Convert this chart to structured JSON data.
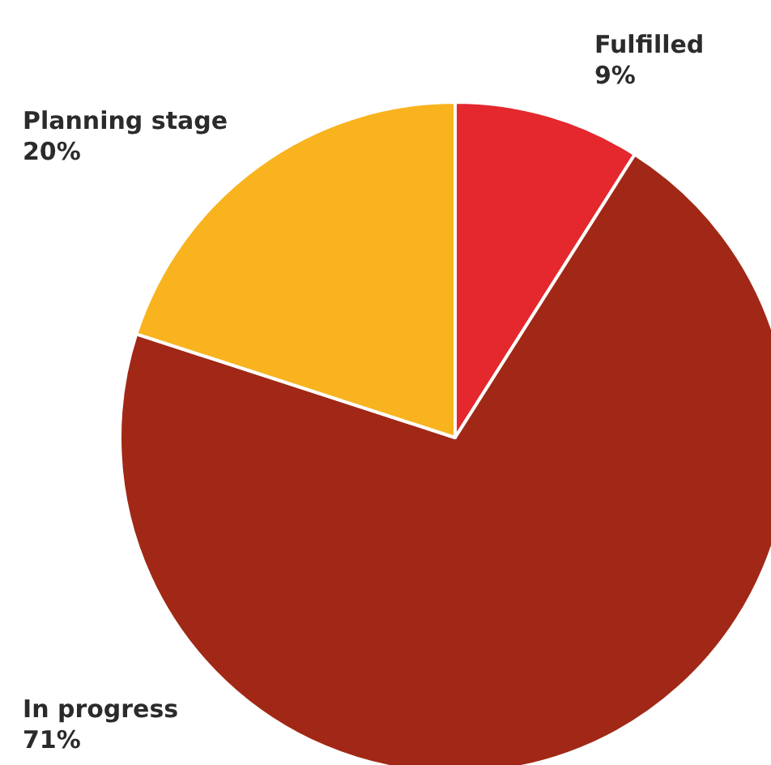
{
  "chart_data": {
    "type": "pie",
    "categories": [
      "Fulfilled",
      "In progress",
      "Planning stage"
    ],
    "values": [
      9,
      71,
      20
    ],
    "value_labels": [
      "9%",
      "71%",
      "20%"
    ],
    "colors": [
      "#e4282e",
      "#a12816",
      "#f8b31e"
    ]
  }
}
